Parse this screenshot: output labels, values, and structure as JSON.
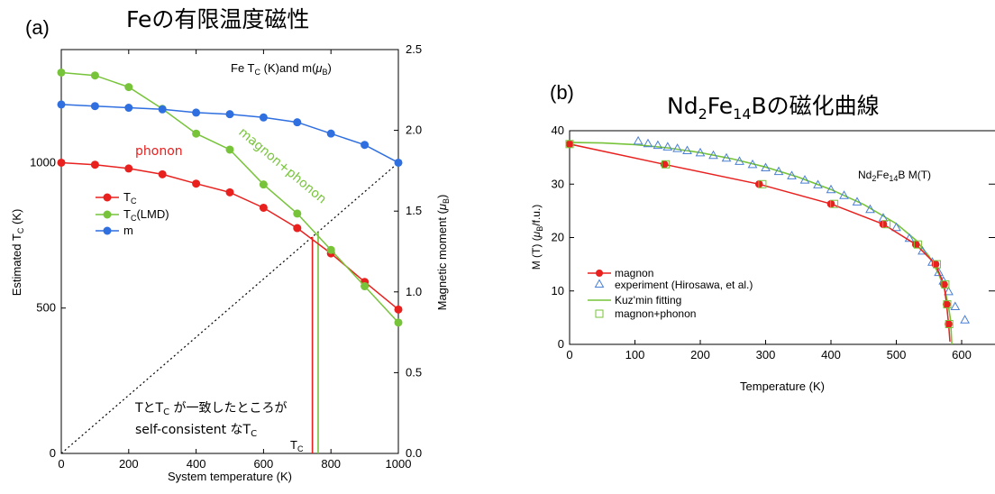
{
  "colors": {
    "red": "#e8201e",
    "green": "#77c43a",
    "blue": "#2f6fe0",
    "black": "#000000",
    "tri": "#4a7fd4"
  },
  "left": {
    "panel_label": "(a)",
    "title": "Feの有限温度磁性",
    "inset_label": "Fe Tᴄ (K)and m(μʙ)",
    "inset": {
      "base": "Fe T",
      "sub1": "C",
      "mid": " (K)and m(",
      "mu": "μ",
      "sub2": "B",
      "end": ")"
    },
    "xlabel": "System temperature (K)",
    "ylabel_left": {
      "base": "Estimated T",
      "sub": "C",
      "end": " (K)"
    },
    "ylabel_right": {
      "base": "Magnetic moment (",
      "mu": "μ",
      "sub": "B",
      "end": ")"
    },
    "x_ticks": [
      "0",
      "200",
      "400",
      "600",
      "800",
      "1000"
    ],
    "yl_ticks": [
      "0",
      "500",
      "1000"
    ],
    "yr_ticks": [
      "0.0",
      "0.5",
      "1.0",
      "1.5",
      "2.0",
      "2.5"
    ],
    "legend": [
      {
        "base": "T",
        "sub": "C",
        "end": ""
      },
      {
        "base": "T",
        "sub": "C",
        "end": "(LMD)"
      },
      {
        "base": "m",
        "sub": "",
        "end": ""
      }
    ],
    "annotations": {
      "phonon": "phonon",
      "magnon_phonon": "magnon+phonon",
      "consistency_line1": {
        "a": "TとT",
        "sub": "C",
        "b": " が一致したところが"
      },
      "consistency_line2": {
        "a": "self-consistent なT",
        "sub": "C"
      },
      "tc_mark": {
        "a": "T",
        "sub": "C"
      }
    }
  },
  "right": {
    "panel_label": "(b)",
    "title": {
      "a": "Nd",
      "s1": "2",
      "b": "Fe",
      "s2": "14",
      "c": "Bの磁化曲線"
    },
    "inset": {
      "a": "Nd",
      "s1": "2",
      "b": "Fe",
      "s2": "14",
      "c": "B  M(T)"
    },
    "xlabel": "Temperature (K)",
    "ylabel": {
      "a": "M (T) (",
      "mu": "μ",
      "s": "B",
      "b": "/f.u.)"
    },
    "x_ticks": [
      "0",
      "100",
      "200",
      "300",
      "400",
      "500",
      "600"
    ],
    "y_ticks": [
      "0",
      "10",
      "20",
      "30",
      "40"
    ],
    "legend": [
      "magnon",
      "experiment (Hirosawa, et al.)",
      "Kuz'min fitting",
      "magnon+phonon"
    ]
  },
  "chart_data": [
    {
      "type": "line",
      "title": "Feの有限温度磁性",
      "xlabel": "System temperature (K)",
      "ylabel": "Estimated TC (K)",
      "y2label": "Magnetic moment (μB)",
      "xlim": [
        0,
        1000
      ],
      "ylim": [
        0,
        1389
      ],
      "y2lim": [
        0,
        2.5
      ],
      "x": [
        0,
        100,
        200,
        300,
        400,
        500,
        600,
        700,
        800,
        900,
        1000
      ],
      "series": [
        {
          "name": "TC",
          "axis": "left",
          "values": [
            1000,
            993,
            980,
            960,
            928,
            898,
            845,
            775,
            688,
            590,
            495
          ]
        },
        {
          "name": "TC(LMD)",
          "axis": "left",
          "values": [
            1310,
            1300,
            1260,
            1185,
            1100,
            1045,
            925,
            825,
            700,
            575,
            450
          ]
        },
        {
          "name": "m",
          "axis": "right",
          "values": [
            2.16,
            2.15,
            2.14,
            2.13,
            2.11,
            2.1,
            2.08,
            2.05,
            1.98,
            1.91,
            1.8
          ]
        }
      ],
      "reference_line": {
        "name": "T = TC",
        "from": [
          0,
          0
        ],
        "to": [
          1000,
          1000
        ]
      },
      "self_consistent_TC": {
        "TC": 745,
        "TC(LMD)": 762
      },
      "legend_position": "left-middle"
    },
    {
      "type": "line",
      "title": "Nd2Fe14Bの磁化曲線",
      "xlabel": "Temperature (K)",
      "ylabel": "M (T) (μB/f.u.)",
      "xlim": [
        0,
        640
      ],
      "ylim": [
        0,
        40
      ],
      "series": [
        {
          "name": "magnon",
          "x": [
            0,
            145,
            290,
            400,
            480,
            530,
            560,
            573,
            577,
            580,
            582
          ],
          "values": [
            37.5,
            33.7,
            30.0,
            26.3,
            22.5,
            18.7,
            15.0,
            11.2,
            7.5,
            3.8,
            0.5
          ]
        },
        {
          "name": "experiment (Hirosawa, et al.)",
          "x": [
            105,
            120,
            135,
            150,
            165,
            180,
            200,
            220,
            240,
            260,
            280,
            300,
            320,
            340,
            360,
            380,
            400,
            420,
            440,
            460,
            480,
            500,
            520,
            540,
            555,
            565,
            572,
            580,
            590,
            605
          ],
          "values": [
            38.0,
            37.5,
            37.2,
            36.9,
            36.6,
            36.2,
            35.8,
            35.3,
            34.8,
            34.2,
            33.6,
            33.0,
            32.3,
            31.5,
            30.7,
            29.8,
            28.9,
            27.8,
            26.6,
            25.2,
            23.6,
            21.8,
            19.8,
            17.4,
            15.3,
            13.4,
            11.8,
            9.8,
            7.0,
            4.5
          ]
        },
        {
          "name": "Kuz'min fitting",
          "x": [
            0,
            50,
            100,
            150,
            200,
            250,
            300,
            350,
            400,
            450,
            500,
            530,
            550,
            565,
            575,
            580,
            583,
            585
          ],
          "values": [
            37.8,
            37.7,
            37.4,
            36.8,
            35.9,
            34.7,
            33.2,
            31.3,
            29.0,
            26.2,
            22.6,
            19.5,
            16.5,
            13.2,
            9.8,
            7.0,
            4.5,
            0
          ]
        },
        {
          "name": "magnon+phonon",
          "x": [
            0,
            147,
            295,
            405,
            485,
            533,
            562,
            575,
            578,
            581
          ],
          "values": [
            37.5,
            33.7,
            30.0,
            26.3,
            22.5,
            18.7,
            15.0,
            11.2,
            7.5,
            3.8
          ]
        }
      ],
      "legend_position": "bottom-left"
    }
  ]
}
